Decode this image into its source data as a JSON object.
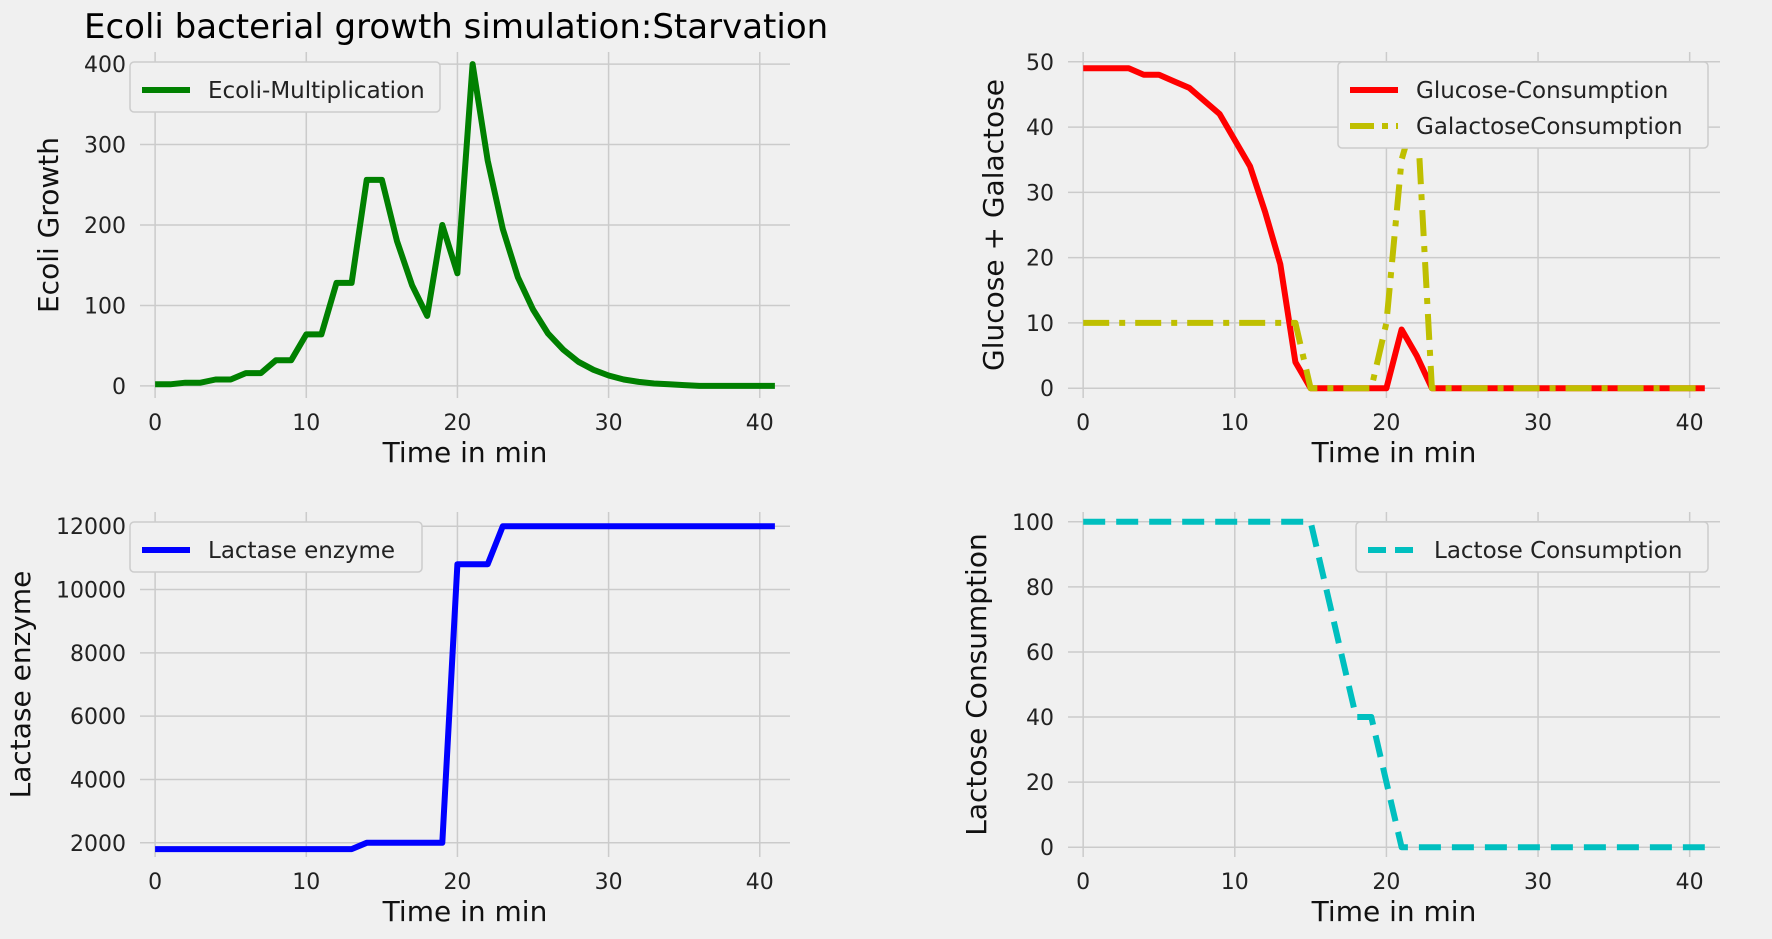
{
  "figure": {
    "title": "Ecoli bacterial growth simulation:Starvation",
    "background": "#f0f0f0"
  },
  "chart_data": [
    {
      "type": "line",
      "title": "",
      "xlabel": "Time in min",
      "ylabel": "Ecoli Growth",
      "xlim": [
        -1,
        42
      ],
      "ylim": [
        -15,
        415
      ],
      "xticks": [
        0,
        10,
        20,
        30,
        40
      ],
      "yticks": [
        0,
        100,
        200,
        300,
        400
      ],
      "grid": true,
      "legend_position": "top-left",
      "series": [
        {
          "name": "Ecoli-Multiplication",
          "color": "#008000",
          "style": "solid",
          "x": [
            0,
            1,
            2,
            3,
            4,
            5,
            6,
            7,
            8,
            9,
            10,
            11,
            12,
            13,
            14,
            15,
            16,
            17,
            18,
            19,
            20,
            21,
            22,
            23,
            24,
            25,
            26,
            27,
            28,
            29,
            30,
            31,
            32,
            33,
            34,
            35,
            36,
            37,
            38,
            39,
            40,
            41
          ],
          "y": [
            2,
            2,
            4,
            4,
            8,
            8,
            16,
            16,
            32,
            32,
            64,
            64,
            128,
            128,
            256,
            256,
            180,
            125,
            87,
            200,
            140,
            400,
            280,
            195,
            135,
            95,
            65,
            45,
            30,
            20,
            13,
            8,
            5,
            3,
            2,
            1,
            0,
            0,
            0,
            0,
            0,
            0
          ]
        }
      ]
    },
    {
      "type": "line",
      "title": "",
      "xlabel": "Time in min",
      "ylabel": "Glucose + Galactose",
      "xlim": [
        -1,
        42
      ],
      "ylim": [
        -1.5,
        51.5
      ],
      "xticks": [
        0,
        10,
        20,
        30,
        40
      ],
      "yticks": [
        0,
        10,
        20,
        30,
        40,
        50
      ],
      "grid": true,
      "legend_position": "top-right",
      "series": [
        {
          "name": "Glucose-Consumption",
          "color": "#ff0000",
          "style": "solid",
          "x": [
            0,
            1,
            2,
            3,
            4,
            5,
            6,
            7,
            8,
            9,
            10,
            11,
            12,
            13,
            14,
            15,
            16,
            17,
            18,
            19,
            20,
            21,
            22,
            23,
            24,
            25,
            26,
            27,
            28,
            29,
            30,
            31,
            32,
            33,
            34,
            35,
            36,
            37,
            38,
            39,
            40,
            41
          ],
          "y": [
            49,
            49,
            49,
            49,
            48,
            48,
            47,
            46,
            44,
            42,
            38,
            34,
            27,
            19,
            4,
            0,
            0,
            0,
            0,
            0,
            0,
            9,
            5,
            0,
            0,
            0,
            0,
            0,
            0,
            0,
            0,
            0,
            0,
            0,
            0,
            0,
            0,
            0,
            0,
            0,
            0,
            0
          ]
        },
        {
          "name": "GalactoseConsumption",
          "color": "#bfbf00",
          "style": "dashdot",
          "x": [
            0,
            1,
            2,
            3,
            4,
            5,
            6,
            7,
            8,
            9,
            10,
            11,
            12,
            13,
            14,
            15,
            16,
            17,
            18,
            19,
            20,
            21,
            22,
            23,
            24,
            25,
            26,
            27,
            28,
            29,
            30,
            31,
            32,
            33,
            34,
            35,
            36,
            37,
            38,
            39,
            40,
            41
          ],
          "y": [
            10,
            10,
            10,
            10,
            10,
            10,
            10,
            10,
            10,
            10,
            10,
            10,
            10,
            10,
            10,
            0,
            0,
            0,
            0,
            0,
            10,
            35,
            43,
            0,
            0,
            0,
            0,
            0,
            0,
            0,
            0,
            0,
            0,
            0,
            0,
            0,
            0,
            0,
            0,
            0,
            0,
            0
          ]
        }
      ]
    },
    {
      "type": "line",
      "title": "",
      "xlabel": "Time in min",
      "ylabel": "Lactase enzyme",
      "xlim": [
        -1,
        42
      ],
      "ylim": [
        1550,
        12450
      ],
      "xticks": [
        0,
        10,
        20,
        30,
        40
      ],
      "yticks": [
        2000,
        4000,
        6000,
        8000,
        10000,
        12000
      ],
      "grid": true,
      "legend_position": "top-left",
      "series": [
        {
          "name": "Lactase enzyme",
          "color": "#0000ff",
          "style": "solid",
          "x": [
            0,
            1,
            2,
            3,
            4,
            5,
            6,
            7,
            8,
            9,
            10,
            11,
            12,
            13,
            14,
            15,
            16,
            17,
            18,
            19,
            20,
            21,
            22,
            23,
            24,
            25,
            26,
            27,
            28,
            29,
            30,
            31,
            32,
            33,
            34,
            35,
            36,
            37,
            38,
            39,
            40,
            41
          ],
          "y": [
            1800,
            1800,
            1800,
            1800,
            1800,
            1800,
            1800,
            1800,
            1800,
            1800,
            1800,
            1800,
            1800,
            1800,
            2000,
            2000,
            2000,
            2000,
            2000,
            2000,
            10800,
            10800,
            10800,
            12000,
            12000,
            12000,
            12000,
            12000,
            12000,
            12000,
            12000,
            12000,
            12000,
            12000,
            12000,
            12000,
            12000,
            12000,
            12000,
            12000,
            12000,
            12000
          ]
        }
      ]
    },
    {
      "type": "line",
      "title": "",
      "xlabel": "Time in min",
      "ylabel": "Lactose Consumption",
      "xlim": [
        -1,
        42
      ],
      "ylim": [
        -3,
        103
      ],
      "xticks": [
        0,
        10,
        20,
        30,
        40
      ],
      "yticks": [
        0,
        20,
        40,
        60,
        80,
        100
      ],
      "grid": true,
      "legend_position": "top-right",
      "series": [
        {
          "name": "Lactose Consumption",
          "color": "#00bfbf",
          "style": "dashed",
          "x": [
            0,
            1,
            2,
            3,
            4,
            5,
            6,
            7,
            8,
            9,
            10,
            11,
            12,
            13,
            14,
            15,
            16,
            17,
            18,
            19,
            20,
            21,
            22,
            23,
            24,
            25,
            26,
            27,
            28,
            29,
            30,
            31,
            32,
            33,
            34,
            35,
            36,
            37,
            38,
            39,
            40,
            41
          ],
          "y": [
            100,
            100,
            100,
            100,
            100,
            100,
            100,
            100,
            100,
            100,
            100,
            100,
            100,
            100,
            100,
            100,
            80,
            60,
            40,
            40,
            20,
            0,
            0,
            0,
            0,
            0,
            0,
            0,
            0,
            0,
            0,
            0,
            0,
            0,
            0,
            0,
            0,
            0,
            0,
            0,
            0,
            0
          ]
        }
      ]
    }
  ]
}
